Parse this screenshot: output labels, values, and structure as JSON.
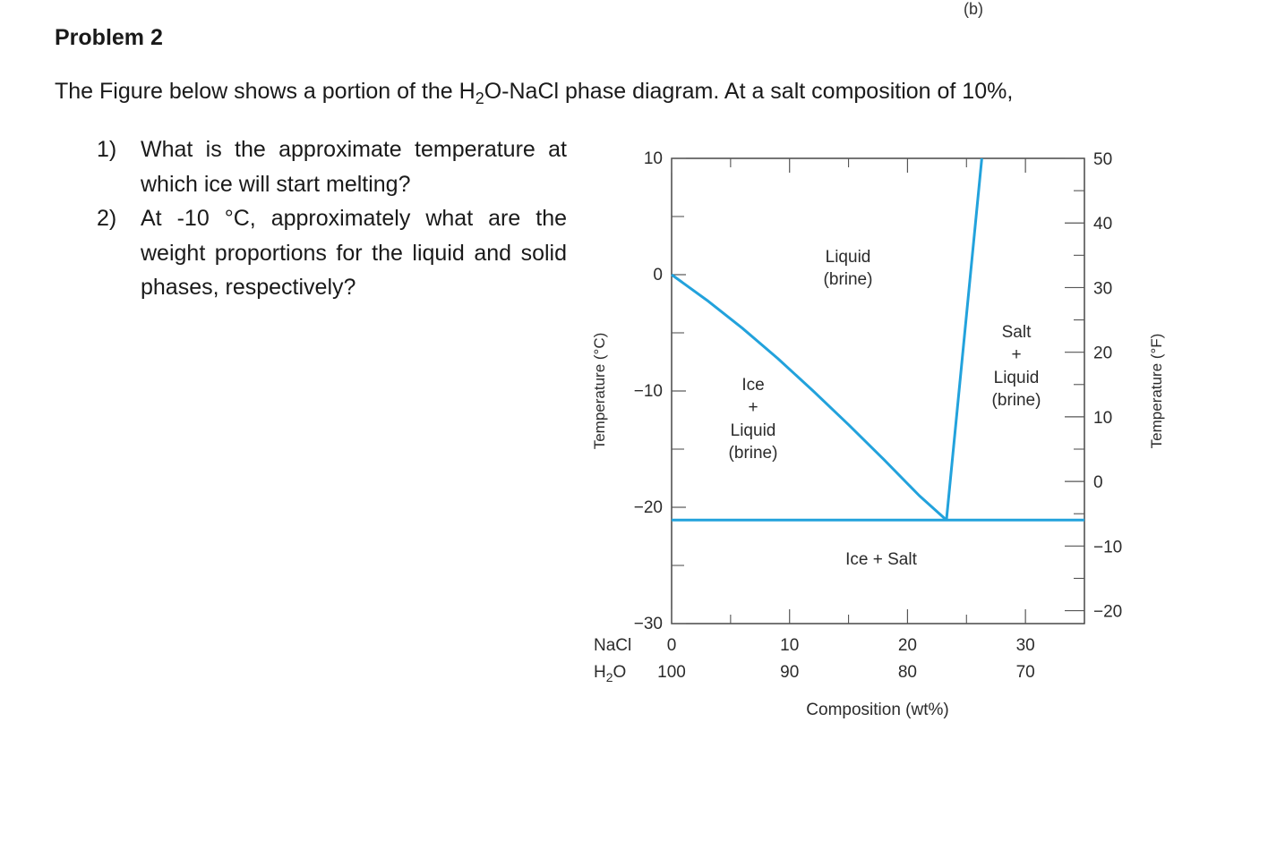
{
  "header": {
    "figure_tag": "(b)",
    "title": "Problem 2",
    "intro_pre": "The Figure below shows a portion of the H",
    "intro_sub": "2",
    "intro_post": "O-NaCl phase diagram. At a salt composition of 10%,"
  },
  "questions": [
    {
      "number": "1)",
      "text": "What is the approximate temperature at which ice will start melting?"
    },
    {
      "number": "2)",
      "text": "At -10 °C, approximately what are the weight proportions for the liquid and solid phases, respectively?"
    }
  ],
  "chart_data": {
    "type": "line",
    "xlabel": "Composition (wt%)",
    "ylabel_left": "Temperature (°C)",
    "ylabel_right": "Temperature (°F)",
    "xlim": [
      0,
      35
    ],
    "ylim": [
      -30,
      10
    ],
    "x_ticks": [
      0,
      10,
      20,
      30
    ],
    "x_tick_labels_nacl": [
      "0",
      "10",
      "20",
      "30"
    ],
    "x_tick_labels_h2o": [
      "100",
      "90",
      "80",
      "70"
    ],
    "x_row_label_nacl": "NaCl",
    "x_row_label_h2o_pre": "H",
    "x_row_label_h2o_sub": "2",
    "x_row_label_h2o_post": "O",
    "y_ticks_left": [
      10,
      0,
      -10,
      -20,
      -30
    ],
    "y_tick_labels_left": [
      "10",
      "0",
      "−10",
      "−20",
      "−30"
    ],
    "y_ticks_right_F": [
      50,
      40,
      30,
      20,
      10,
      0,
      -10,
      -20
    ],
    "y_tick_labels_right": [
      "50",
      "40",
      "30",
      "20",
      "10",
      "0",
      "−10",
      "−20"
    ],
    "line_color": "#22a2dc",
    "series": [
      {
        "x": [
          0,
          3,
          6,
          9,
          12,
          15,
          18,
          21,
          23.3
        ],
        "y": [
          0,
          -2.2,
          -4.6,
          -7.2,
          -10,
          -12.9,
          -15.9,
          -19,
          -21.1
        ]
      },
      {
        "x": [
          23.3,
          26.3
        ],
        "y": [
          -21.1,
          10
        ]
      },
      {
        "x": [
          0,
          35
        ],
        "y": [
          -21.1,
          -21.1
        ]
      }
    ],
    "regions": {
      "liquid": [
        "Liquid",
        "(brine)"
      ],
      "ice_liquid": [
        "Ice",
        "+",
        "Liquid",
        "(brine)"
      ],
      "salt_liquid": [
        "Salt",
        "+",
        "Liquid",
        "(brine)"
      ],
      "ice_salt": "Ice + Salt"
    }
  }
}
